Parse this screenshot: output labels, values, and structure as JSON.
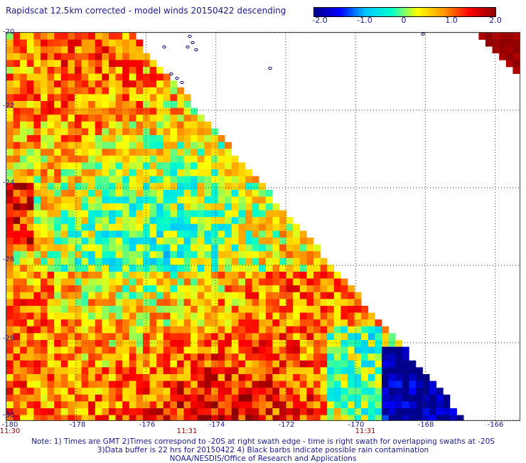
{
  "title": "Rapidscat 12.5km corrected - model winds 20150422 descending",
  "colorbar": {
    "ticks": [
      "-2.0",
      "-1.0",
      "0",
      "1.0",
      "2.0"
    ],
    "tick_values": [
      -2.0,
      -1.0,
      0,
      1.0,
      2.0
    ],
    "range": [
      -2.0,
      2.0
    ],
    "colors": [
      "#00008b",
      "#0000ff",
      "#00c8ff",
      "#00ffcc",
      "#ffff00",
      "#ff9900",
      "#ff0000",
      "#8b0000"
    ]
  },
  "axes": {
    "lat_labels": [
      "-20",
      "-22",
      "-24",
      "-26",
      "-28",
      "-30"
    ],
    "lat_values": [
      -20,
      -22,
      -24,
      -26,
      -28,
      -30
    ],
    "lon_labels": [
      "-180",
      "-178",
      "-176",
      "-174",
      "-172",
      "-170",
      "-168",
      "-166"
    ],
    "lon_values": [
      -180,
      -178,
      -176,
      -174,
      -172,
      -170,
      -168,
      -166
    ],
    "lat_range": [
      -30,
      -20
    ],
    "lon_range": [
      -180,
      -165.3
    ],
    "time_labels": [
      {
        "label": "11:30",
        "lon": -180
      },
      {
        "label": "11:31",
        "lon": -175
      },
      {
        "label": "11:31",
        "lon": -170
      }
    ]
  },
  "notes": [
    "Note: 1) Times are GMT 2)Times correspond to -20S at right swath edge - time is right swath for overlapping swaths at -20S",
    "3)Data buffer is 22 hrs for 20150422 4) Black barbs indicate possible rain contamination",
    "NOAA/NESDIS/Office of Research and Applications"
  ]
}
